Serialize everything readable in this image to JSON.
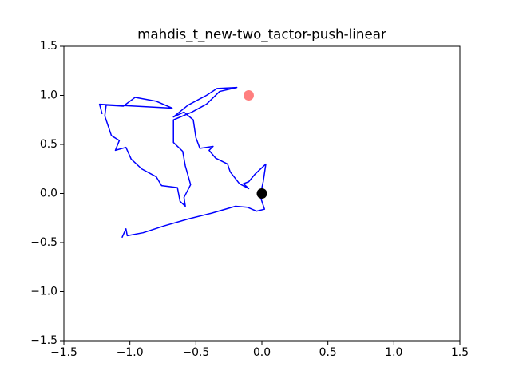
{
  "chart_data": {
    "type": "line",
    "title": "mahdis_t_new-two_tactor-push-linear",
    "xlim": [
      -1.5,
      1.5
    ],
    "ylim": [
      -1.5,
      1.5
    ],
    "xticks": [
      {
        "value": -1.5,
        "label": "−1.5"
      },
      {
        "value": -1.0,
        "label": "−1.0"
      },
      {
        "value": -0.5,
        "label": "−0.5"
      },
      {
        "value": 0,
        "label": "0.0"
      },
      0.5,
      {
        "value": 1.0,
        "label": "1.0"
      },
      1.5
    ],
    "yticks": [
      {
        "value": -1.5,
        "label": "−1.5"
      },
      {
        "value": -1.0,
        "label": "−1.0"
      },
      {
        "value": -0.5,
        "label": "−0.5"
      },
      {
        "value": 0,
        "label": "0.0"
      },
      0.5,
      {
        "value": 1.0,
        "label": "1.0"
      },
      1.5
    ],
    "series": [
      {
        "color": "#0000ff",
        "x": [
          -1.06,
          -1.03,
          -1.02,
          -0.9,
          -0.74,
          -0.56,
          -0.38,
          -0.2,
          -0.11,
          -0.04,
          0.02,
          -0.01,
          -0.01,
          0.01,
          0.03,
          -0.05,
          -0.1,
          -0.14,
          -0.1,
          -0.17,
          -0.24,
          -0.26,
          -0.35,
          -0.4,
          -0.37,
          -0.47,
          -0.5,
          -0.52,
          -0.59,
          -0.67,
          -0.56,
          -0.42,
          -0.34,
          -0.19,
          -0.32,
          -0.42,
          -0.53,
          -0.67,
          -0.67,
          -0.6,
          -0.58,
          -0.54,
          -0.59,
          -0.58,
          -0.62,
          -0.64,
          -0.76,
          -0.8,
          -0.91,
          -0.99,
          -1.03,
          -1.11,
          -1.08,
          -1.14,
          -1.19,
          -1.18,
          -1.05,
          -0.96,
          -0.8,
          -0.68,
          -1.23,
          -1.21
        ],
        "values": [
          -0.45,
          -0.36,
          -0.43,
          -0.4,
          -0.33,
          -0.26,
          -0.2,
          -0.13,
          -0.14,
          -0.18,
          -0.16,
          -0.04,
          0.0,
          0.12,
          0.3,
          0.2,
          0.12,
          0.1,
          0.05,
          0.1,
          0.22,
          0.3,
          0.36,
          0.44,
          0.48,
          0.46,
          0.57,
          0.75,
          0.83,
          0.78,
          0.9,
          1.0,
          1.07,
          1.08,
          1.04,
          0.91,
          0.83,
          0.75,
          0.52,
          0.43,
          0.28,
          0.09,
          -0.04,
          -0.13,
          -0.08,
          0.06,
          0.08,
          0.17,
          0.25,
          0.35,
          0.47,
          0.44,
          0.54,
          0.59,
          0.79,
          0.9,
          0.89,
          0.98,
          0.94,
          0.87,
          0.91,
          0.81
        ]
      }
    ],
    "points": [
      {
        "color": "#ff0000",
        "opacity": 0.5,
        "x": -0.1,
        "y": 1.0
      },
      {
        "color": "#000000",
        "opacity": 1,
        "x": 0,
        "y": 0
      }
    ]
  }
}
